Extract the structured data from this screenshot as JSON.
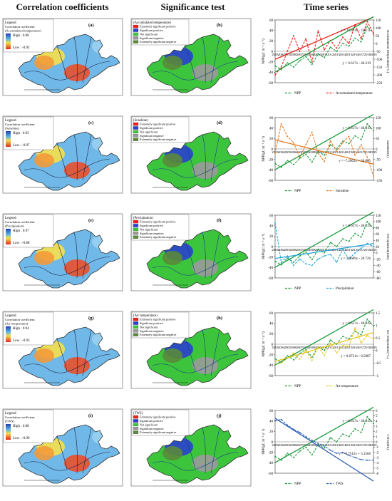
{
  "headers": {
    "col1": "Correlation coefficients",
    "col2": "Significance test",
    "col3": "Time series"
  },
  "colors": {
    "npp": "#1a9a3c",
    "accumulated_temperature": "#e8231c",
    "sunshine": "#e7781c",
    "precipitation": "#26a6d8",
    "air_temperature": "#e8c61a",
    "tws": "#2f5fb8",
    "sig_ext_pos": "#e8231c",
    "sig_pos": "#2a3fd0",
    "not_sig": "#3cc43c",
    "sig_neg": "#9a9a9a",
    "sig_ext_neg": "#5a8a3a"
  },
  "rows": [
    {
      "corr": {
        "label": "(a)",
        "legend_title": "Legend",
        "legend_sub": "Correlation coefficient",
        "legend_var": "(Accumulated temperature)",
        "high": "High : 0.98",
        "low": "Low : -0.92"
      },
      "sig": {
        "label": "(b)",
        "var": "(Accumulated temperature)",
        "items": [
          "Extremely significant positive",
          "Significant positive",
          "Not significant",
          "Significant negative",
          "Extremely significant negative"
        ]
      }
    },
    {
      "corr": {
        "label": "(c)",
        "legend_title": "Legend",
        "legend_sub": "Correlation coefficient",
        "legend_var": "(Sunshine)",
        "high": "High : 0.93",
        "low": "Low : -0.97"
      },
      "sig": {
        "label": "(d)",
        "var": "(Sunshine)",
        "items": [
          "Extremely significant positive",
          "Significant positive",
          "Not significant",
          "Significant negative",
          "Extremely significant negative"
        ]
      }
    },
    {
      "corr": {
        "label": "(e)",
        "legend_title": "Legend",
        "legend_sub": "Correlation coefficient",
        "legend_var": "(Precipitation)",
        "high": "High : 0.97",
        "low": "Low : -0.88"
      },
      "sig": {
        "label": "(f)",
        "var": "(Precipitation)",
        "items": [
          "Extremely significant positive",
          "Significant positive",
          "Not significant",
          "Significant negative",
          "Extremely significant negative"
        ]
      }
    },
    {
      "corr": {
        "label": "(g)",
        "legend_title": "Legend",
        "legend_sub": "Correlation coefficient",
        "legend_var": "(Air temperature)",
        "high": "High : 0.94",
        "low": "Low : -0.93"
      },
      "sig": {
        "label": "(h)",
        "var": "(Air temperature)",
        "items": [
          "Extremely significant positive",
          "Significant positive",
          "Not significant",
          "Significant negative",
          "Extremely significant negative"
        ]
      }
    },
    {
      "corr": {
        "label": "(i)",
        "legend_title": "Legend",
        "legend_sub": "Correlation coefficient",
        "legend_var": "(TWS)",
        "high": "High : 0.98",
        "low": "Low : -0.99"
      },
      "sig": {
        "label": "(j)",
        "var": "(TWS)",
        "items": [
          "Extremely significant positive",
          "Significant positive",
          "Not significant",
          "Significant negative",
          "Extremely significant negative"
        ]
      }
    }
  ],
  "chart_data": [
    {
      "type": "line",
      "x": [
        2003,
        2004,
        2005,
        2006,
        2007,
        2008,
        2009,
        2010,
        2011,
        2012,
        2013,
        2014,
        2015,
        2016,
        2017,
        2018,
        2019
      ],
      "ylabel": "NPP(gC m⁻² a⁻¹)",
      "y2label": "Accumulated temperature(°C)",
      "ylim": [
        -60,
        60
      ],
      "y2lim": [
        -250,
        150
      ],
      "yticks": [
        -60,
        -40,
        -20,
        0,
        20,
        40,
        60
      ],
      "y2ticks": [
        -250,
        -200,
        -150,
        -100,
        -50,
        0,
        50,
        100,
        150
      ],
      "series": [
        {
          "name": "NPP",
          "axis": "left",
          "color_key": "npp",
          "values": [
            -28,
            -35,
            -22,
            -30,
            -18,
            -10,
            -25,
            -5,
            -12,
            8,
            0,
            15,
            10,
            25,
            18,
            48,
            35
          ]
        },
        {
          "name": "Accumulated temperature",
          "axis": "right",
          "color_key": "accumulated_temperature",
          "values": [
            -200,
            -150,
            -50,
            50,
            -50,
            30,
            -120,
            80,
            -40,
            20,
            -30,
            40,
            0,
            120,
            30,
            140,
            60
          ]
        }
      ],
      "trends": [
        {
          "text": "y = 16.874x - 118.11",
          "axis": "right",
          "color_key": "accumulated_temperature",
          "slope": 16.874,
          "intercept": -118.11
        },
        {
          "text": "y = 6.617x - 46.319",
          "axis": "left",
          "color_key": "npp",
          "slope": 6.617,
          "intercept": -46.319
        }
      ]
    },
    {
      "type": "line",
      "x": [
        2003,
        2004,
        2005,
        2006,
        2007,
        2008,
        2009,
        2010,
        2011,
        2012,
        2013,
        2014,
        2015,
        2016,
        2017,
        2018,
        2019
      ],
      "ylabel": "NPP(gC m⁻² a⁻¹)",
      "y2label": "Sunshine(h)",
      "ylim": [
        -60,
        60
      ],
      "y2lim": [
        -150,
        150
      ],
      "yticks": [
        -60,
        -40,
        -20,
        0,
        20,
        40,
        60
      ],
      "y2ticks": [
        -150,
        -100,
        -50,
        0,
        50,
        100,
        150
      ],
      "series": [
        {
          "name": "NPP",
          "axis": "left",
          "color_key": "npp",
          "values": [
            -28,
            -35,
            -22,
            -30,
            -18,
            -10,
            -25,
            -5,
            -12,
            8,
            0,
            15,
            10,
            25,
            18,
            48,
            35
          ]
        },
        {
          "name": "Sunshine",
          "axis": "right",
          "color_key": "sunshine",
          "values": [
            -20,
            120,
            60,
            30,
            -40,
            20,
            80,
            -20,
            -60,
            40,
            -10,
            30,
            60,
            -30,
            20,
            -40,
            -130
          ]
        }
      ],
      "trends": [
        {
          "text": "y = 6.617x - 46.319",
          "axis": "left",
          "color_key": "npp",
          "slope": 6.617,
          "intercept": -46.319
        },
        {
          "text": "y = -7.2665x + 50.865",
          "axis": "right",
          "color_key": "sunshine",
          "slope": -7.2665,
          "intercept": 50.865
        }
      ]
    },
    {
      "type": "line",
      "x": [
        2003,
        2004,
        2005,
        2006,
        2007,
        2008,
        2009,
        2010,
        2011,
        2012,
        2013,
        2014,
        2015,
        2016,
        2017,
        2018,
        2019
      ],
      "ylabel": "NPP(gC m⁻² a⁻¹)",
      "y2label": "Precipitation(mm)",
      "ylim": [
        -60,
        60
      ],
      "y2lim": [
        -80,
        120
      ],
      "yticks": [
        -60,
        -40,
        -20,
        0,
        20,
        40,
        60
      ],
      "y2ticks": [
        -80,
        -60,
        -40,
        -20,
        0,
        20,
        40,
        60,
        80,
        100,
        120
      ],
      "series": [
        {
          "name": "NPP",
          "axis": "left",
          "color_key": "npp",
          "values": [
            -28,
            -35,
            -22,
            -30,
            -18,
            -10,
            -25,
            -5,
            -12,
            8,
            0,
            15,
            10,
            25,
            18,
            48,
            35
          ]
        },
        {
          "name": "Precipitation",
          "axis": "right",
          "color_key": "precipitation",
          "values": [
            95,
            -30,
            -10,
            -40,
            -20,
            -35,
            -40,
            -20,
            -10,
            -5,
            -30,
            10,
            -20,
            0,
            15,
            30,
            20
          ]
        }
      ],
      "trends": [
        {
          "text": "y = 6.617x - 46.319",
          "axis": "left",
          "color_key": "npp",
          "slope": 6.617,
          "intercept": -46.319
        },
        {
          "text": "y = 2.9609x - 20.726",
          "axis": "right",
          "color_key": "precipitation",
          "slope": 2.9609,
          "intercept": -20.726
        }
      ]
    },
    {
      "type": "line",
      "x": [
        2003,
        2004,
        2005,
        2006,
        2007,
        2008,
        2009,
        2010,
        2011,
        2012,
        2013,
        2014,
        2015,
        2016,
        2017,
        2018,
        2019
      ],
      "ylabel": "NPP(gC m⁻² a⁻¹)",
      "y2label": "Air temperature(°C)",
      "ylim": [
        -60,
        60
      ],
      "y2lim": [
        -1,
        1.5
      ],
      "yticks": [
        -60,
        -40,
        -20,
        0,
        20,
        40,
        60
      ],
      "y2ticks": [
        -1,
        -0.5,
        0,
        0.5,
        1,
        1.5
      ],
      "series": [
        {
          "name": "NPP",
          "axis": "left",
          "color_key": "npp",
          "values": [
            -28,
            -35,
            -22,
            -30,
            -18,
            -10,
            -25,
            -5,
            -12,
            8,
            0,
            15,
            10,
            25,
            18,
            48,
            35
          ]
        },
        {
          "name": "Air temperature",
          "axis": "right",
          "color_key": "air_temperature",
          "values": [
            -0.55,
            -0.5,
            -0.3,
            -0.1,
            -0.35,
            0.0,
            -0.4,
            0.15,
            -0.2,
            0.3,
            -0.1,
            0.2,
            0.15,
            0.9,
            0.3,
            0.6,
            0.45
          ]
        }
      ],
      "trends": [
        {
          "text": "y = 6.617x - 46.319",
          "axis": "left",
          "color_key": "npp",
          "slope": 6.617,
          "intercept": -46.319
        },
        {
          "text": "y = 0.0721x - 0.5087",
          "axis": "right",
          "color_key": "air_temperature",
          "slope": 0.0721,
          "intercept": -0.5087
        }
      ]
    },
    {
      "type": "line",
      "x": [
        2003,
        2004,
        2005,
        2006,
        2007,
        2008,
        2009,
        2010,
        2011,
        2012,
        2013,
        2014,
        2015,
        2016,
        2017,
        2018,
        2019
      ],
      "ylabel": "NPP(gC m⁻² a⁻¹)",
      "y2label": "TWS(mm)",
      "ylim": [
        -60,
        60
      ],
      "y2lim": [
        -6,
        6
      ],
      "yticks": [
        -60,
        -40,
        -20,
        0,
        20,
        40,
        60
      ],
      "y2ticks": [
        -6,
        -5,
        -4,
        -3,
        -2,
        -1,
        0,
        1,
        2,
        3,
        4,
        5,
        6
      ],
      "series": [
        {
          "name": "NPP",
          "axis": "left",
          "color_key": "npp",
          "values": [
            -28,
            -35,
            -22,
            -30,
            -18,
            -10,
            -25,
            -5,
            -12,
            8,
            0,
            15,
            10,
            25,
            18,
            48,
            35
          ]
        },
        {
          "name": "TWS",
          "axis": "right",
          "color_key": "tws",
          "values": [
            4,
            4.3,
            3.2,
            2.4,
            1.8,
            1.0,
            0.3,
            -0.3,
            -0.8,
            -1.6,
            -2.2,
            -2.0,
            -2.6,
            -3.0,
            -3.4,
            -3.5,
            -3.5
          ]
        }
      ],
      "trends": [
        {
          "text": "y = 6.617x - 46.319",
          "axis": "left",
          "color_key": "npp",
          "slope": 6.617,
          "intercept": -46.319
        },
        {
          "text": "y = -0.7512x + 5.2566",
          "axis": "right",
          "color_key": "tws",
          "slope": -0.7512,
          "intercept": 5.2566
        }
      ]
    }
  ]
}
